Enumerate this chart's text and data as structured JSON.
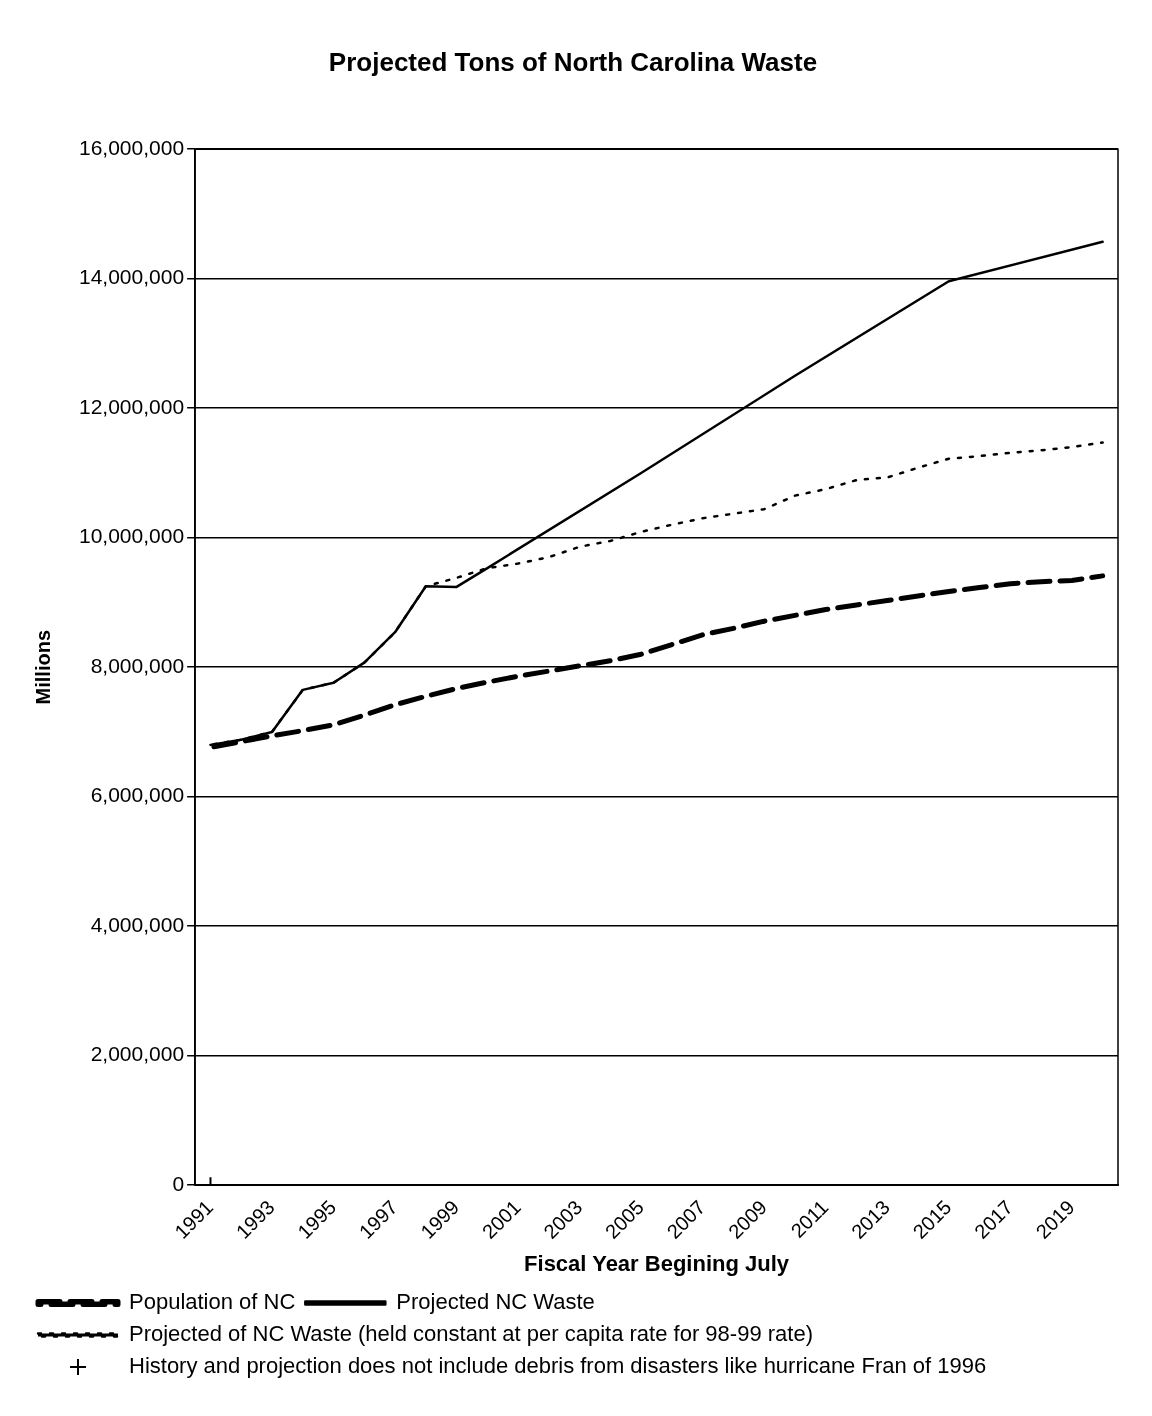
{
  "chart_data": {
    "type": "line",
    "title": "Projected Tons of North Carolina Waste",
    "xlabel": "Fiscal Year Begining July",
    "ylabel": "Millions",
    "categories": [
      "1991",
      null,
      "1993",
      null,
      "1995",
      null,
      "1997",
      null,
      "1999",
      null,
      "2001",
      null,
      "2003",
      null,
      "2005",
      null,
      "2007",
      null,
      "2009",
      null,
      "2011",
      null,
      "2013",
      null,
      "2015",
      null,
      "2017",
      null,
      "2019",
      null
    ],
    "series": [
      {
        "name": "Population of NC",
        "color": "#000000",
        "line_style": "dashed",
        "marker": "none",
        "values": [
          6760000,
          6850000,
          6940000,
          7020000,
          7110000,
          7260000,
          7420000,
          7550000,
          7670000,
          7770000,
          7860000,
          7940000,
          8020000,
          8100000,
          8200000,
          8350000,
          8500000,
          8600000,
          8710000,
          8800000,
          8890000,
          8960000,
          9030000,
          9100000,
          9170000,
          9230000,
          9290000,
          9320000,
          9340000,
          9410000
        ]
      },
      {
        "name": "Projected NC Waste",
        "color": "#000000",
        "line_style": "solid",
        "marker": "none",
        "values": [
          6800000,
          6880000,
          7000000,
          7650000,
          7760000,
          8070000,
          8540000,
          9250000,
          9240000,
          9530000,
          null,
          null,
          null,
          null,
          11000000,
          null,
          null,
          null,
          null,
          12500000,
          null,
          null,
          null,
          null,
          13960000,
          null,
          null,
          null,
          null,
          14570000
        ]
      },
      {
        "name": "Projected of NC Waste (held constant at per capita rate for 98-99 rate)",
        "color": "#000000",
        "line_style": "dotted",
        "marker": "none",
        "values": [
          6800000,
          6880000,
          7000000,
          7650000,
          7760000,
          8070000,
          8540000,
          9250000,
          9380000,
          9530000,
          9600000,
          9700000,
          9860000,
          9950000,
          10090000,
          10200000,
          10300000,
          10370000,
          10440000,
          10650000,
          10750000,
          10890000,
          10930000,
          11080000,
          11220000,
          11260000,
          11310000,
          11350000,
          11400000,
          11470000
        ]
      },
      {
        "name": "History and projection does not include debris from disasters like hurricane Fran of 1996",
        "type": "scatter",
        "color": "#000000",
        "marker": "cross",
        "values": [
          0,
          null,
          null,
          null,
          null,
          null,
          null,
          null,
          null,
          null,
          null,
          null,
          null,
          null,
          null,
          null,
          null,
          null,
          null,
          null,
          null,
          null,
          null,
          null,
          null,
          null,
          null,
          null,
          null,
          null
        ]
      }
    ],
    "ylim": [
      0,
      16000000
    ],
    "yticks": [
      {
        "value": 0,
        "label": "0"
      },
      {
        "value": 2000000,
        "label": "2,000,000"
      },
      {
        "value": 4000000,
        "label": "4,000,000"
      },
      {
        "value": 6000000,
        "label": "6,000,000"
      },
      {
        "value": 8000000,
        "label": "8,000,000"
      },
      {
        "value": 10000000,
        "label": "10,000,000"
      },
      {
        "value": 12000000,
        "label": "12,000,000"
      },
      {
        "value": 14000000,
        "label": "14,000,000"
      },
      {
        "value": 16000000,
        "label": "16,000,000"
      }
    ],
    "grid": "y",
    "legend": "bottom"
  }
}
